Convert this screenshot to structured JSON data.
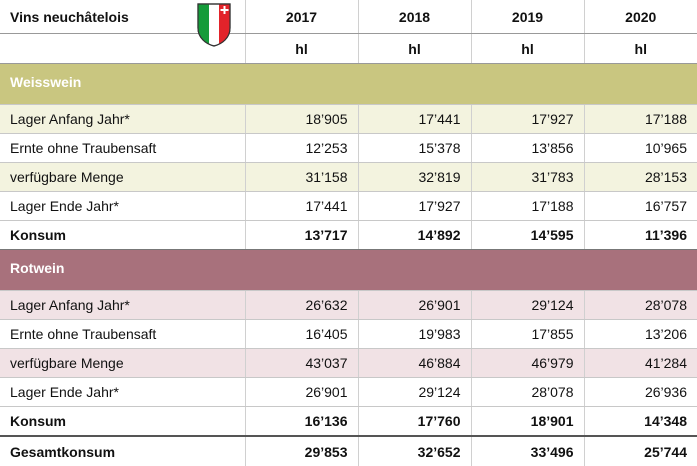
{
  "header": {
    "title": "Vins neuchâtelois",
    "years": [
      "2017",
      "2018",
      "2019",
      "2020"
    ],
    "units": [
      "hl",
      "hl",
      "hl",
      "hl"
    ]
  },
  "sections": [
    {
      "name": "Weisswein",
      "rows": [
        {
          "label": "Lager Anfang Jahr*",
          "values": [
            "18’905",
            "17’441",
            "17’927",
            "17’188"
          ]
        },
        {
          "label": "Ernte ohne Traubensaft",
          "values": [
            "12’253",
            "15’378",
            "13’856",
            "10’965"
          ]
        },
        {
          "label": "verfügbare Menge",
          "values": [
            "31’158",
            "32’819",
            "31’783",
            "28’153"
          ]
        },
        {
          "label": "Lager Ende Jahr*",
          "values": [
            "17’441",
            "17’927",
            "17’188",
            "16’757"
          ]
        },
        {
          "label": "Konsum",
          "values": [
            "13’717",
            "14’892",
            "14’595",
            "11’396"
          ]
        }
      ]
    },
    {
      "name": "Rotwein",
      "rows": [
        {
          "label": "Lager Anfang Jahr*",
          "values": [
            "26’632",
            "26’901",
            "29’124",
            "28’078"
          ]
        },
        {
          "label": "Ernte ohne Traubensaft",
          "values": [
            "16’405",
            "19’983",
            "17’855",
            "13’206"
          ]
        },
        {
          "label": "verfügbare Menge",
          "values": [
            "43’037",
            "46’884",
            "46’979",
            "41’284"
          ]
        },
        {
          "label": "Lager Ende Jahr*",
          "values": [
            "26’901",
            "29’124",
            "28’078",
            "26’936"
          ]
        },
        {
          "label": "Konsum",
          "values": [
            "16’136",
            "17’760",
            "18’901",
            "14’348"
          ]
        }
      ]
    }
  ],
  "total": {
    "label": "Gesamtkonsum",
    "values": [
      "29’853",
      "32’652",
      "33’496",
      "25’744"
    ]
  }
}
